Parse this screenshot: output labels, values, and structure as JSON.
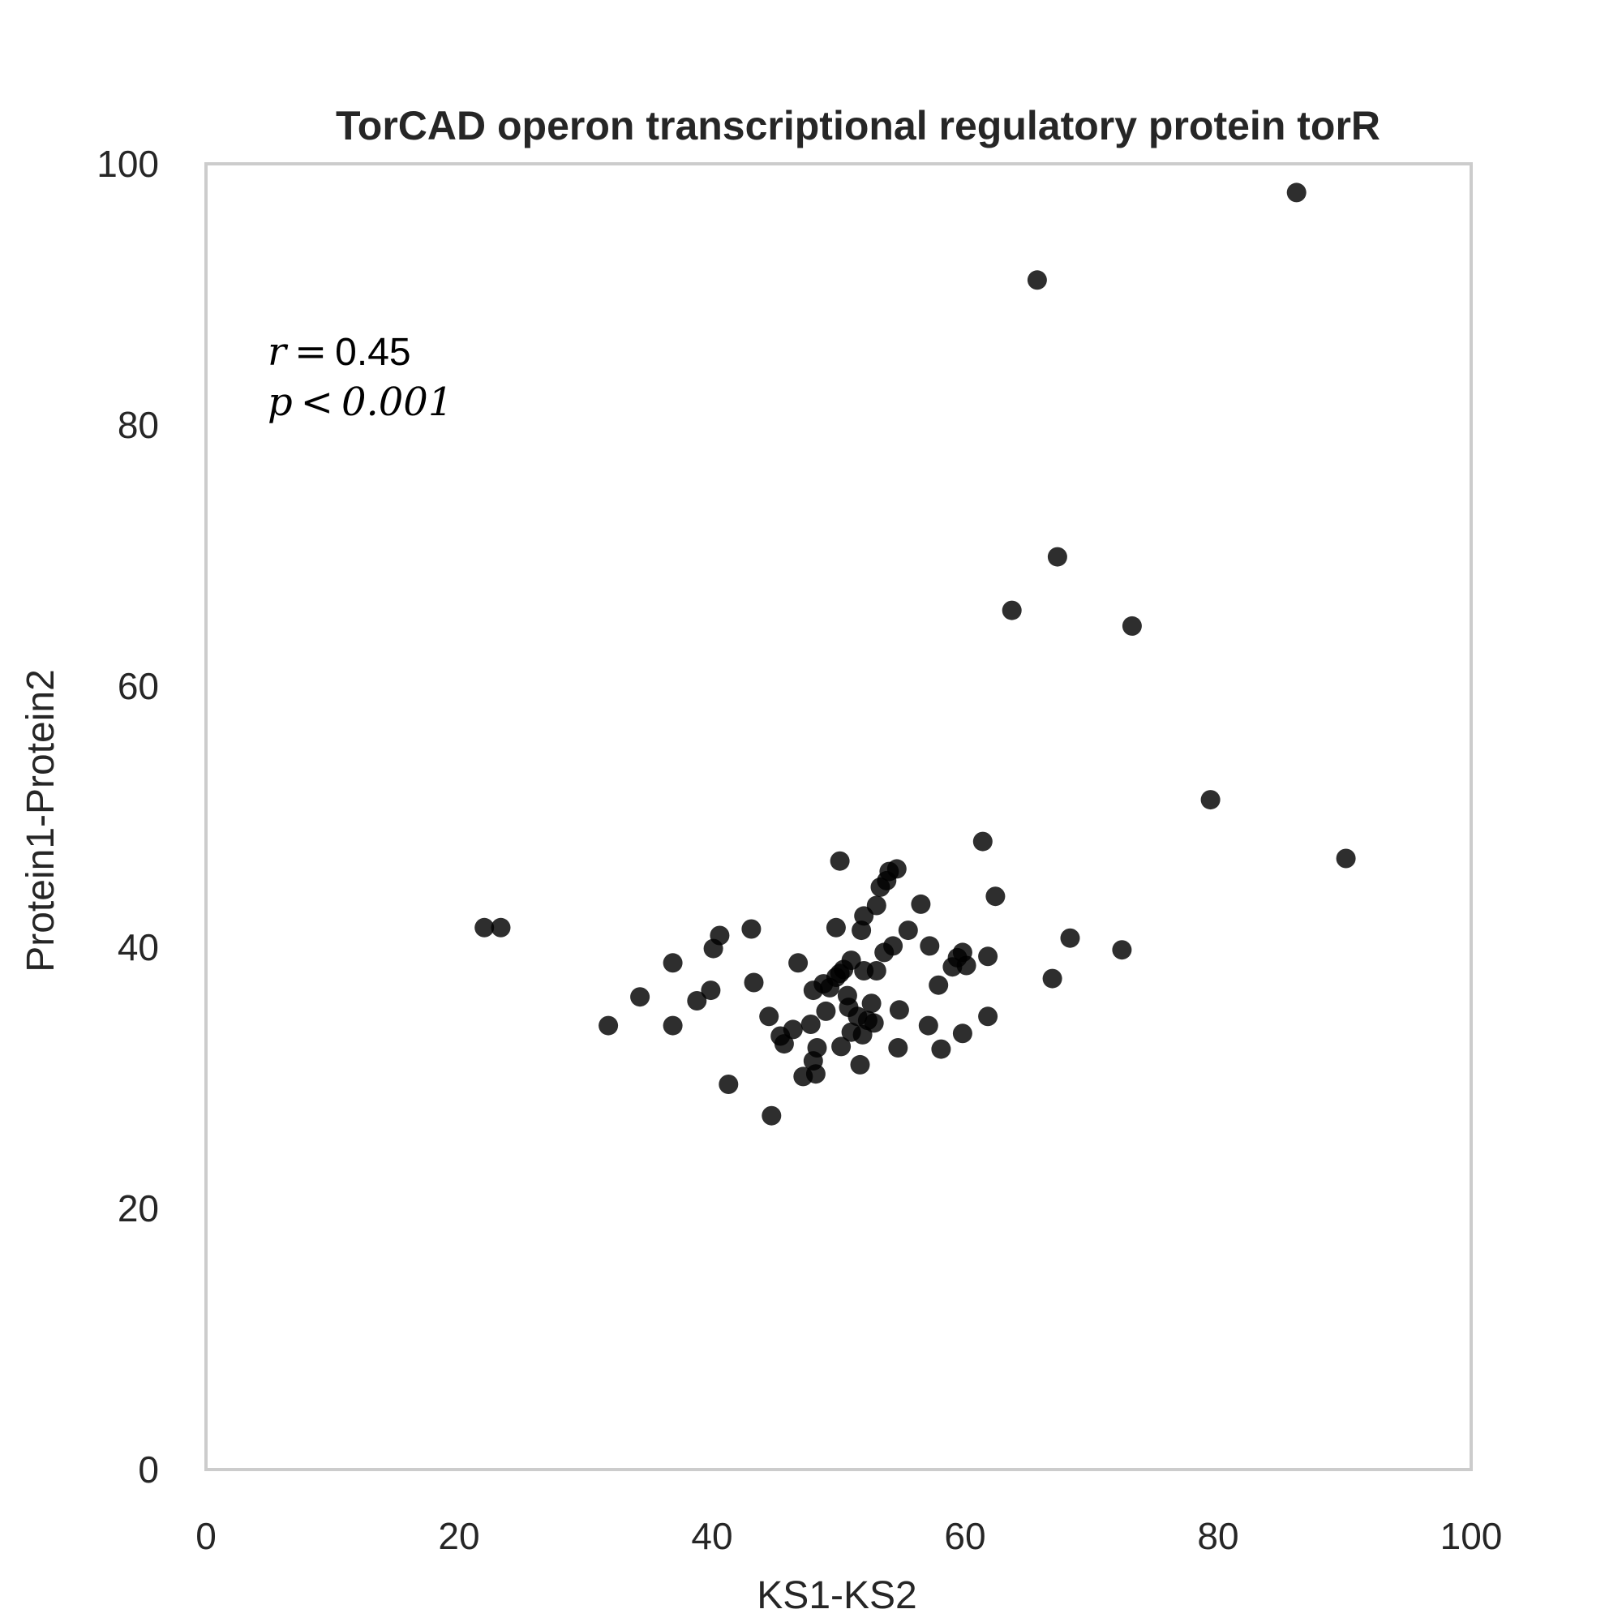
{
  "chart_data": {
    "type": "scatter",
    "title": "TorCAD operon transcriptional regulatory protein torR",
    "xlabel": "KS1-KS2",
    "ylabel": "Protein1-Protein2",
    "xlim": [
      0,
      100
    ],
    "ylim": [
      0,
      100
    ],
    "xticks": [
      "0",
      "20",
      "40",
      "60",
      "80",
      "100"
    ],
    "yticks": [
      "0",
      "20",
      "40",
      "60",
      "80",
      "100"
    ],
    "grid": false,
    "marker_color": "#000000",
    "marker_alpha": 0.82,
    "annotation": {
      "r_label": "r",
      "r_value": "0.45",
      "p_label": "p",
      "p_value": "0.001"
    },
    "points": [
      [
        22.0,
        41.5
      ],
      [
        23.3,
        41.5
      ],
      [
        31.8,
        34.0
      ],
      [
        34.3,
        36.2
      ],
      [
        36.9,
        34.0
      ],
      [
        36.9,
        38.8
      ],
      [
        38.8,
        35.9
      ],
      [
        39.9,
        36.7
      ],
      [
        40.1,
        39.9
      ],
      [
        40.6,
        40.9
      ],
      [
        41.3,
        29.5
      ],
      [
        43.1,
        41.4
      ],
      [
        43.3,
        37.3
      ],
      [
        44.5,
        34.7
      ],
      [
        44.7,
        27.1
      ],
      [
        45.4,
        33.2
      ],
      [
        45.7,
        32.6
      ],
      [
        46.4,
        33.7
      ],
      [
        46.8,
        38.8
      ],
      [
        47.2,
        30.1
      ],
      [
        47.8,
        34.1
      ],
      [
        48.0,
        31.3
      ],
      [
        48.0,
        36.7
      ],
      [
        48.2,
        30.3
      ],
      [
        48.3,
        32.3
      ],
      [
        48.8,
        37.2
      ],
      [
        49.0,
        35.1
      ],
      [
        49.3,
        36.9
      ],
      [
        49.8,
        37.7
      ],
      [
        49.8,
        41.5
      ],
      [
        50.1,
        46.6
      ],
      [
        50.1,
        38.0
      ],
      [
        50.2,
        32.4
      ],
      [
        50.4,
        38.3
      ],
      [
        50.7,
        36.3
      ],
      [
        50.8,
        35.4
      ],
      [
        51.0,
        33.5
      ],
      [
        51.0,
        39.0
      ],
      [
        51.5,
        34.7
      ],
      [
        51.7,
        31.0
      ],
      [
        51.8,
        41.3
      ],
      [
        51.9,
        33.3
      ],
      [
        52.0,
        42.4
      ],
      [
        52.0,
        38.2
      ],
      [
        52.3,
        34.4
      ],
      [
        52.6,
        35.7
      ],
      [
        52.8,
        34.2
      ],
      [
        53.0,
        43.2
      ],
      [
        53.0,
        38.2
      ],
      [
        53.3,
        44.6
      ],
      [
        53.6,
        39.6
      ],
      [
        53.8,
        45.1
      ],
      [
        54.0,
        45.8
      ],
      [
        54.3,
        40.1
      ],
      [
        54.6,
        46.0
      ],
      [
        54.7,
        32.3
      ],
      [
        54.8,
        35.2
      ],
      [
        55.5,
        41.3
      ],
      [
        56.5,
        43.3
      ],
      [
        57.1,
        34.0
      ],
      [
        57.2,
        40.1
      ],
      [
        57.9,
        37.1
      ],
      [
        58.1,
        32.2
      ],
      [
        59.0,
        38.5
      ],
      [
        59.4,
        39.2
      ],
      [
        59.8,
        39.6
      ],
      [
        59.8,
        33.4
      ],
      [
        60.1,
        38.6
      ],
      [
        61.4,
        48.1
      ],
      [
        61.8,
        34.7
      ],
      [
        61.8,
        39.3
      ],
      [
        62.4,
        43.9
      ],
      [
        63.7,
        65.8
      ],
      [
        65.7,
        91.1
      ],
      [
        66.9,
        37.6
      ],
      [
        67.3,
        69.9
      ],
      [
        68.3,
        40.7
      ],
      [
        72.4,
        39.8
      ],
      [
        73.2,
        64.6
      ],
      [
        79.4,
        51.3
      ],
      [
        86.2,
        97.8
      ],
      [
        90.1,
        46.8
      ]
    ]
  }
}
